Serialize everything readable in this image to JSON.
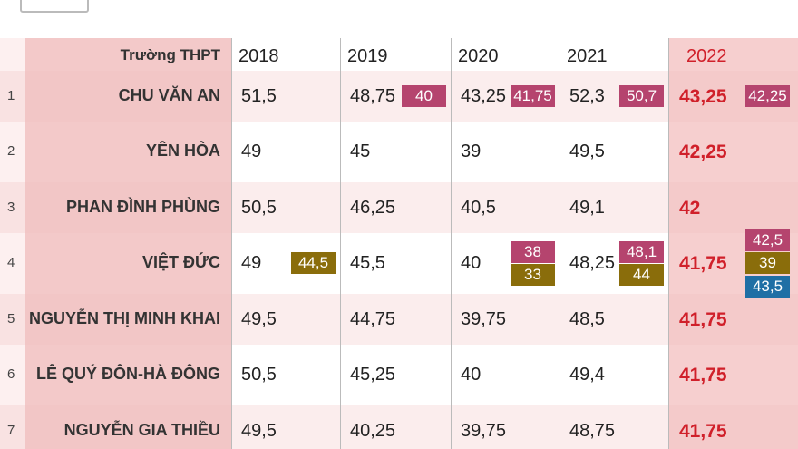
{
  "table": {
    "header": [
      "Trường THPT",
      "2018",
      "2019",
      "2020",
      "2021",
      "2022"
    ],
    "rows": [
      {
        "index": "1",
        "name": "CHU VĂN AN",
        "cells": [
          {
            "value": "51,5",
            "badges": []
          },
          {
            "value": "48,75",
            "badges": [
              {
                "text": "40",
                "color": "#b5446e"
              }
            ]
          },
          {
            "value": "43,25",
            "badges": [
              {
                "text": "41,75",
                "color": "#b5446e"
              }
            ]
          },
          {
            "value": "52,3",
            "badges": [
              {
                "text": "50,7",
                "color": "#b5446e"
              }
            ]
          },
          {
            "value": "43,25",
            "badges": [
              {
                "text": "42,25",
                "color": "#b5446e"
              }
            ]
          }
        ]
      },
      {
        "index": "2",
        "name": "YÊN HÒA",
        "cells": [
          {
            "value": "49",
            "badges": []
          },
          {
            "value": "45",
            "badges": []
          },
          {
            "value": "39",
            "badges": []
          },
          {
            "value": "49,5",
            "badges": []
          },
          {
            "value": "42,25",
            "badges": []
          }
        ]
      },
      {
        "index": "3",
        "name": "PHAN ĐÌNH PHÙNG",
        "cells": [
          {
            "value": "50,5",
            "badges": []
          },
          {
            "value": "46,25",
            "badges": []
          },
          {
            "value": "40,5",
            "badges": []
          },
          {
            "value": "49,1",
            "badges": []
          },
          {
            "value": "42",
            "badges": []
          }
        ]
      },
      {
        "index": "4",
        "name": "VIỆT ĐỨC",
        "cells": [
          {
            "value": "49",
            "badges": [
              {
                "text": "44,5",
                "color": "#8a6d0b"
              }
            ]
          },
          {
            "value": "45,5",
            "badges": []
          },
          {
            "value": "40",
            "badges": [
              {
                "text": "38",
                "color": "#b5446e"
              },
              {
                "text": "33",
                "color": "#8a6d0b"
              }
            ]
          },
          {
            "value": "48,25",
            "badges": [
              {
                "text": "48,1",
                "color": "#b5446e"
              },
              {
                "text": "44",
                "color": "#8a6d0b"
              }
            ]
          },
          {
            "value": "41,75",
            "badges": [
              {
                "text": "42,5",
                "color": "#b5446e"
              },
              {
                "text": "39",
                "color": "#8a6d0b"
              },
              {
                "text": "43,5",
                "color": "#1f6fa5"
              }
            ]
          }
        ]
      },
      {
        "index": "5",
        "name": "NGUYỄN THỊ MINH KHAI",
        "cells": [
          {
            "value": "49,5",
            "badges": []
          },
          {
            "value": "44,75",
            "badges": []
          },
          {
            "value": "39,75",
            "badges": []
          },
          {
            "value": "48,5",
            "badges": []
          },
          {
            "value": "41,75",
            "badges": []
          }
        ]
      },
      {
        "index": "6",
        "name": "LÊ QUÝ ĐÔN-HÀ ĐÔNG",
        "cells": [
          {
            "value": "50,5",
            "badges": []
          },
          {
            "value": "45,25",
            "badges": []
          },
          {
            "value": "40",
            "badges": []
          },
          {
            "value": "49,4",
            "badges": []
          },
          {
            "value": "41,75",
            "badges": []
          }
        ]
      },
      {
        "index": "7",
        "name": "NGUYỄN GIA THIỀU",
        "cells": [
          {
            "value": "49,5",
            "badges": []
          },
          {
            "value": "40,25",
            "badges": []
          },
          {
            "value": "39,75",
            "badges": []
          },
          {
            "value": "48,75",
            "badges": []
          },
          {
            "value": "41,75",
            "badges": []
          }
        ]
      }
    ]
  }
}
